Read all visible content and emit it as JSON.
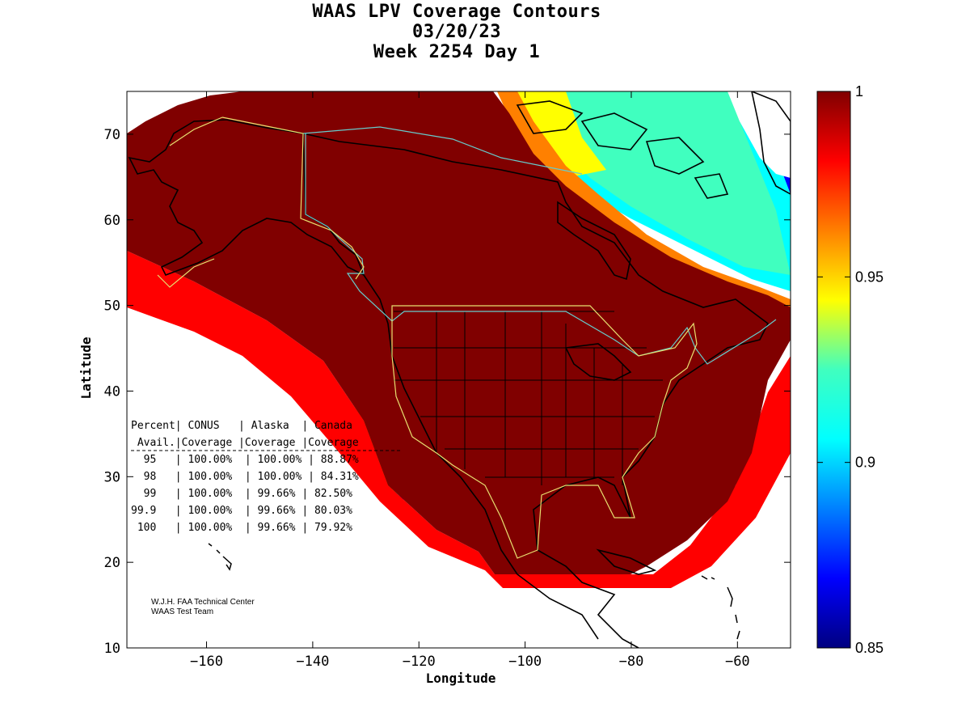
{
  "title": {
    "line1": "WAAS LPV Coverage Contours",
    "line2": "03/20/23",
    "line3": "Week 2254 Day 1"
  },
  "axes": {
    "xlabel": "Longitude",
    "ylabel": "Latitude",
    "xlim": [
      -175,
      -50
    ],
    "ylim": [
      10,
      75
    ],
    "xticks": [
      -160,
      -140,
      -120,
      -100,
      -80,
      -60
    ],
    "yticks": [
      10,
      20,
      30,
      40,
      50,
      60,
      70
    ]
  },
  "colorbar": {
    "range": [
      0.85,
      1
    ],
    "ticks": [
      {
        "value": 1,
        "label": "1"
      },
      {
        "value": 0.95,
        "label": "0.95"
      },
      {
        "value": 0.9,
        "label": "0.9"
      },
      {
        "value": 0.85,
        "label": "0.85"
      }
    ],
    "colormap": "jet"
  },
  "table": {
    "header1": "Percent| CONUS   | Alaska  | Canada",
    "header2": " Avail.|Coverage |Coverage |Coverage",
    "rows": [
      "  95   | 100.00%  | 100.00% | 88.87%",
      "  98   | 100.00%  | 100.00% | 84.31%",
      "  99   | 100.00%  | 99.66% | 82.50%",
      "99.9   | 100.00%  | 99.66% | 80.03%",
      " 100   | 100.00%  | 99.66% | 79.92%"
    ]
  },
  "credit": {
    "line1": "W.J.H. FAA Technical Center",
    "line2": "WAAS Test Team"
  },
  "colors": {
    "full_coverage": "#800000",
    "red": "#ff0000",
    "orange": "#ff8000",
    "yellow": "#ffff00",
    "cyan": "#00ffff",
    "teal": "#40ffbf",
    "blue": "#0000ff",
    "navy": "#000080",
    "border_cyan": "#66cccc",
    "border_yellow": "#e8e070"
  },
  "chart_data": {
    "type": "heatmap",
    "title": "WAAS LPV Coverage Contours 03/20/23 Week 2254 Day 1",
    "xlabel": "Longitude",
    "ylabel": "Latitude",
    "xlim": [
      -175,
      -50
    ],
    "ylim": [
      10,
      75
    ],
    "value_range": [
      0.85,
      1
    ],
    "coverage_table": {
      "columns": [
        "Percent Avail.",
        "CONUS Coverage",
        "Alaska Coverage",
        "Canada Coverage"
      ],
      "rows": [
        [
          "95",
          "100.00%",
          "100.00%",
          "88.87%"
        ],
        [
          "98",
          "100.00%",
          "100.00%",
          "84.31%"
        ],
        [
          "99",
          "100.00%",
          "99.66%",
          "82.50%"
        ],
        [
          "99.9",
          "100.00%",
          "99.66%",
          "80.03%"
        ],
        [
          "100",
          "100.00%",
          "99.66%",
          "79.92%"
        ]
      ]
    }
  }
}
